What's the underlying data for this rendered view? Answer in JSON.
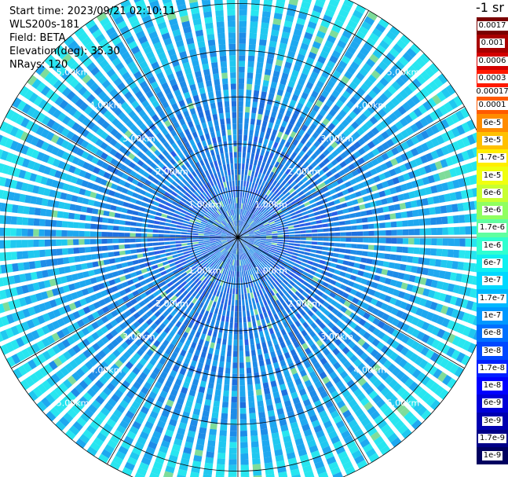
{
  "info": {
    "start_time": "Start time: 2023/09/21 02:10:11",
    "instrument": "WLS200s-181",
    "field": "Field: BETA",
    "elevation": "Elevation(deg): 35.30",
    "nrays": "NRays: 120"
  },
  "colorbar": {
    "title": "-1 sr",
    "group1": [
      "0.0017",
      "0.001",
      "0.0006",
      "0.0003"
    ],
    "group1_colors": [
      "#7a0000",
      "#a80000",
      "#d40000",
      "#ff1a00"
    ],
    "middle_label": "0.00017",
    "group2": [
      "0.0001",
      "6e-5",
      "3e-5",
      "1.7e-5",
      "1e-5",
      "6e-6",
      "3e-6",
      "1.7e-6",
      "1e-6",
      "6e-7",
      "3e-7",
      "1.7e-7",
      "1e-7",
      "6e-8",
      "3e-8",
      "1.7e-8",
      "1e-8",
      "6e-9",
      "3e-9",
      "1.7e-9",
      "1e-9"
    ],
    "group2_colors": [
      "#ff5a00",
      "#ff8c00",
      "#ffc000",
      "#ffee00",
      "#f0ff10",
      "#c8ff30",
      "#90ff60",
      "#60ffa0",
      "#30ffd0",
      "#10f0f0",
      "#00d8ff",
      "#00b8ff",
      "#0098ff",
      "#0070ff",
      "#0048ff",
      "#0020ff",
      "#0000ff",
      "#0000d8",
      "#0000b0",
      "#000088",
      "#000060"
    ]
  },
  "chart_data": {
    "type": "ppi",
    "field": "BETA",
    "nrays": 120,
    "range_rings_km": [
      1.0,
      2.0,
      3.0,
      4.0,
      5.0
    ],
    "ring_labels": [
      "1.00km",
      "2.00km",
      "3.00km",
      "4.00km",
      "5.00km"
    ],
    "max_range_km": 5.6,
    "spoke_angles_deg": [
      0,
      30,
      60,
      90,
      120,
      150,
      180,
      210,
      240,
      270,
      300,
      330
    ],
    "dominant_value_range": [
      "6e-7",
      "1e-8"
    ],
    "colors": {
      "ring": "#000000",
      "ring_label": "#ffffff",
      "outer_band": "#28e6f0",
      "inner_band": "#1e7be8"
    }
  }
}
